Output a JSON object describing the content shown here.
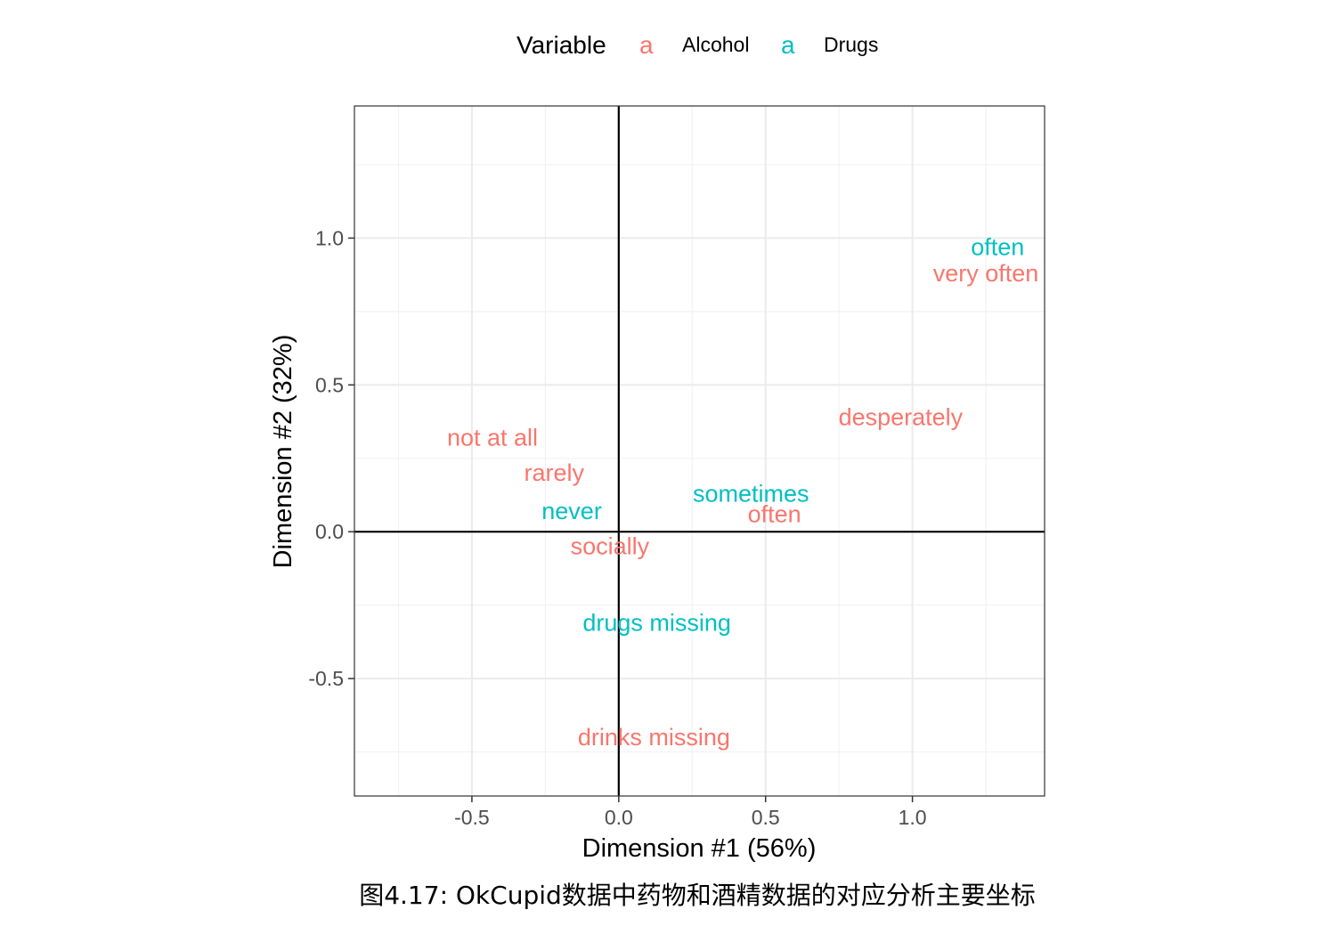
{
  "caption": "图4.17: OkCupid数据中药物和酒精数据的对应分析主要坐标",
  "chart_data": {
    "type": "scatter",
    "title": "",
    "xlabel": "Dimension #1 (56%)",
    "ylabel": "Dimension #2 (32%)",
    "xlim": [
      -0.9,
      1.45
    ],
    "ylim": [
      -0.9,
      1.45
    ],
    "xticks": [
      -0.5,
      0.0,
      0.5,
      1.0
    ],
    "xtick_labels": [
      "-0.5",
      "0.0",
      "0.5",
      "1.0"
    ],
    "yticks": [
      -0.5,
      0.0,
      0.5,
      1.0
    ],
    "ytick_labels": [
      "-0.5",
      "0.0",
      "0.5",
      "1.0"
    ],
    "grid": true,
    "reference_lines": {
      "x": 0,
      "y": 0
    },
    "legend": {
      "title": "Variable",
      "placement": "top",
      "key_glyph": "a",
      "entries": [
        {
          "name": "Alcohol",
          "color": "#F8766D"
        },
        {
          "name": "Drugs",
          "color": "#00BFC4"
        }
      ]
    },
    "series": [
      {
        "name": "Alcohol",
        "color": "#F8766D",
        "points": [
          {
            "label": "very often",
            "x": 1.25,
            "y": 0.88
          },
          {
            "label": "desperately",
            "x": 0.96,
            "y": 0.39
          },
          {
            "label": "not at all",
            "x": -0.43,
            "y": 0.32
          },
          {
            "label": "rarely",
            "x": -0.22,
            "y": 0.2
          },
          {
            "label": "often",
            "x": 0.53,
            "y": 0.06
          },
          {
            "label": "socially",
            "x": -0.03,
            "y": -0.05
          },
          {
            "label": "drinks missing",
            "x": 0.12,
            "y": -0.7
          }
        ]
      },
      {
        "name": "Drugs",
        "color": "#00BFC4",
        "points": [
          {
            "label": "often",
            "x": 1.29,
            "y": 0.97
          },
          {
            "label": "sometimes",
            "x": 0.45,
            "y": 0.13
          },
          {
            "label": "never",
            "x": -0.16,
            "y": 0.07
          },
          {
            "label": "drugs missing",
            "x": 0.13,
            "y": -0.31
          }
        ]
      }
    ]
  }
}
